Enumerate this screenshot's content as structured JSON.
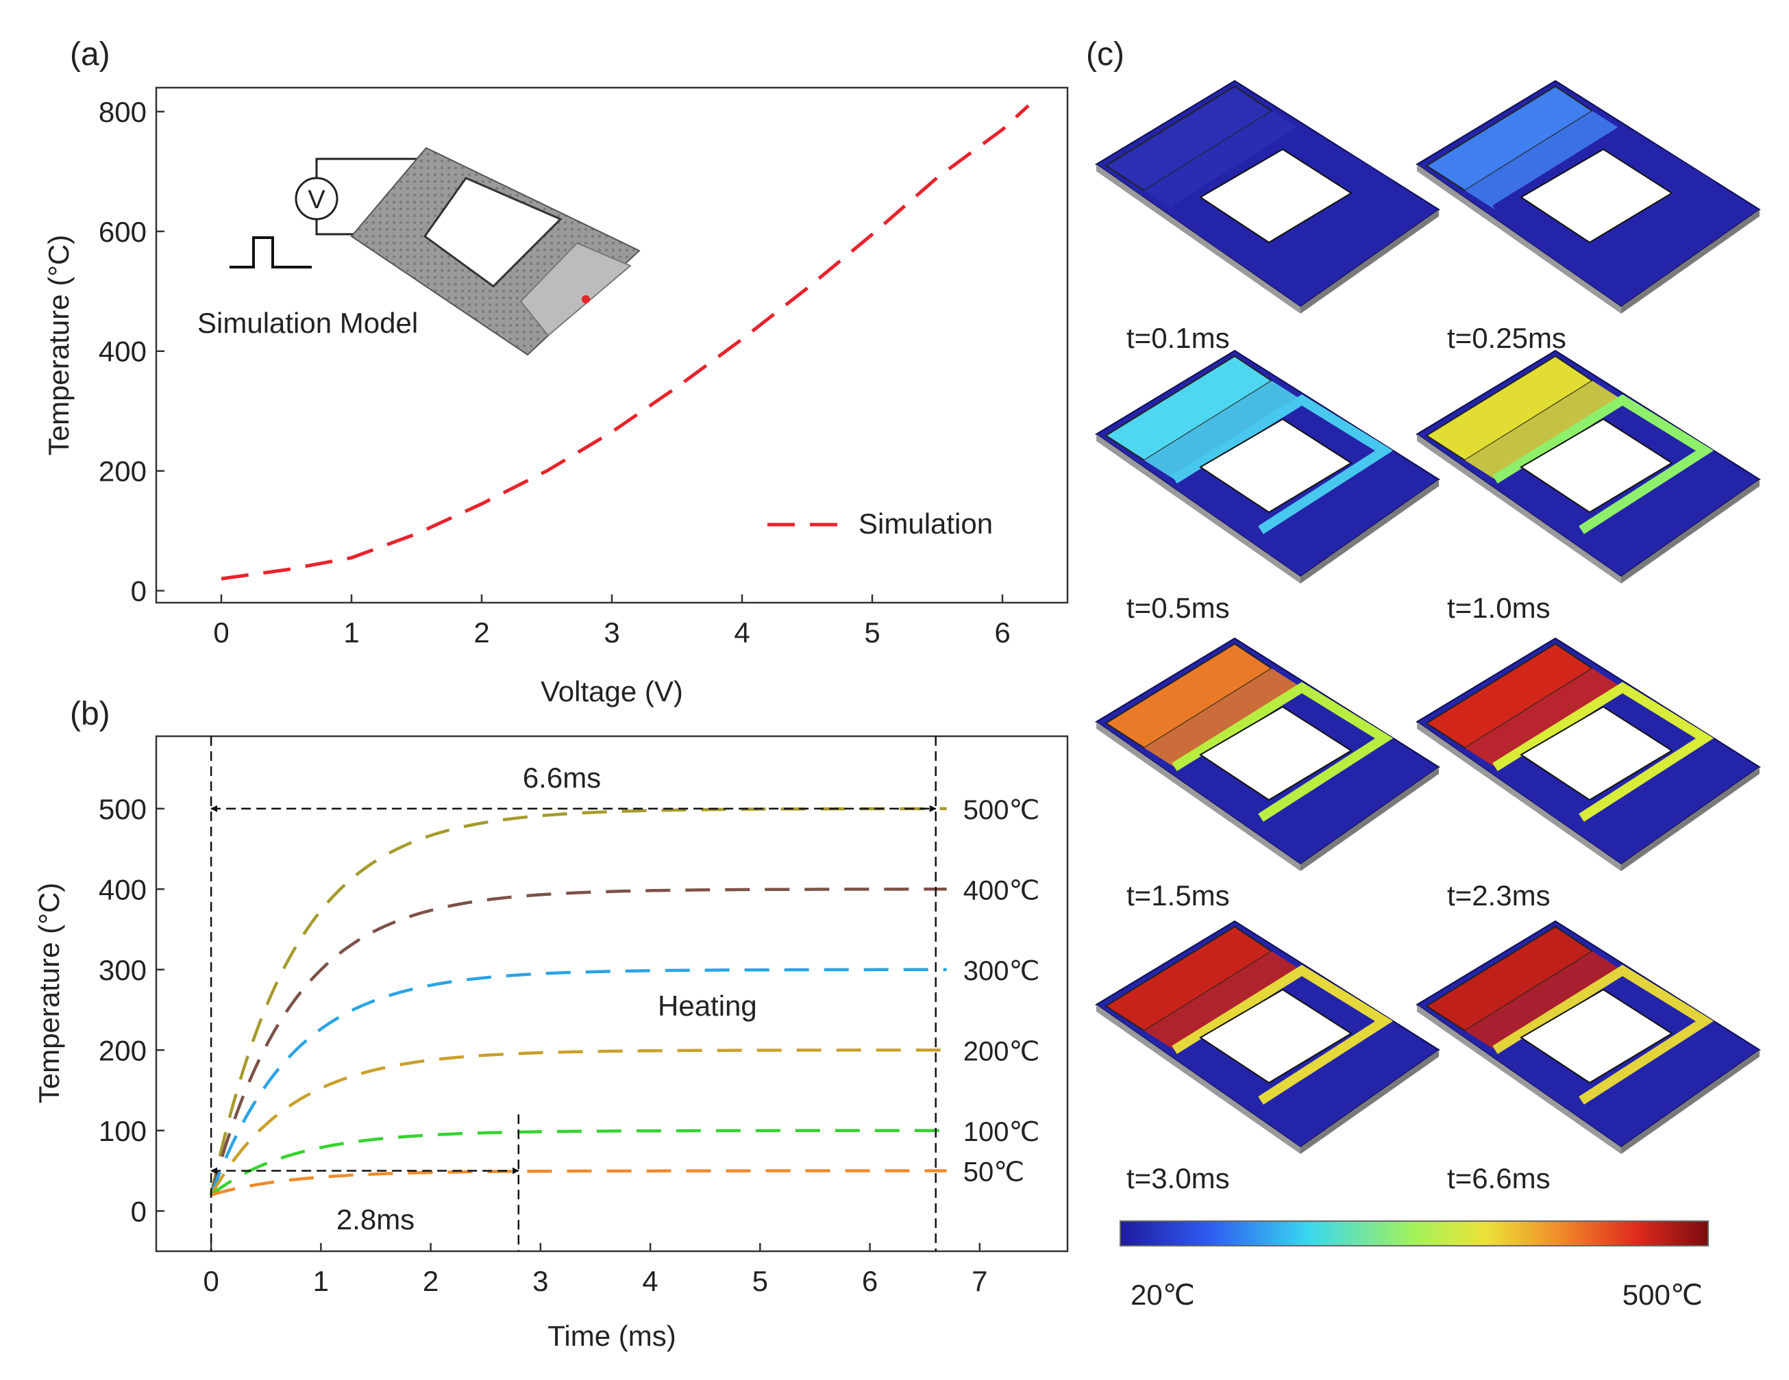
{
  "panel_a": {
    "label": "(a)",
    "inset_label": "Simulation  Model",
    "voltmeter": "V",
    "legend": "Simulation"
  },
  "panel_b": {
    "label": "(b)",
    "span_long": "6.6ms",
    "span_short": "2.8ms",
    "annotation": "Heating",
    "targets": [
      "500℃",
      "400℃",
      "300℃",
      "200℃",
      "100℃",
      "50℃"
    ]
  },
  "panel_c": {
    "label": "(c)",
    "times": [
      "t=0.1ms",
      "t=0.25ms",
      "t=0.5ms",
      "t=1.0ms",
      "t=1.5ms",
      "t=2.3ms",
      "t=3.0ms",
      "t=6.6ms"
    ],
    "colorbar_min": "20℃",
    "colorbar_max": "500℃"
  },
  "chart_data": [
    {
      "id": "a",
      "type": "line",
      "xlabel": "Voltage (V)",
      "ylabel": "Temperature (°C)",
      "xlim": [
        -0.5,
        6.5
      ],
      "ylim": [
        -20,
        840
      ],
      "xticks": [
        0,
        1,
        2,
        3,
        4,
        5,
        6
      ],
      "yticks": [
        0,
        200,
        400,
        600,
        800
      ],
      "series": [
        {
          "name": "Simulation",
          "color": "#e8232b",
          "x": [
            0,
            0.5,
            1,
            1.5,
            2,
            2.5,
            3,
            3.5,
            4,
            4.5,
            5,
            5.5,
            6,
            6.2
          ],
          "y": [
            20,
            35,
            55,
            95,
            145,
            200,
            265,
            340,
            420,
            505,
            595,
            690,
            770,
            810
          ]
        }
      ]
    },
    {
      "id": "b",
      "type": "line",
      "xlabel": "Time (ms)",
      "ylabel": "Temperature  (°C)",
      "xlim": [
        -0.5,
        7.8
      ],
      "ylim": [
        -50,
        590
      ],
      "xticks": [
        0,
        1,
        2,
        3,
        4,
        5,
        6,
        7
      ],
      "yticks": [
        0,
        100,
        200,
        300,
        400,
        500
      ],
      "series": [
        {
          "name": "500℃",
          "target": 500,
          "color": "#a69a2c"
        },
        {
          "name": "400℃",
          "target": 400,
          "color": "#7d5149"
        },
        {
          "name": "300℃",
          "target": 300,
          "color": "#2aa3e5"
        },
        {
          "name": "200℃",
          "target": 200,
          "color": "#c9a02a"
        },
        {
          "name": "100℃",
          "target": 100,
          "color": "#36d22f"
        },
        {
          "name": "50℃",
          "target": 50,
          "color": "#f08a2a"
        }
      ],
      "time_constant_ms": 0.75,
      "t_end_ms": 6.7,
      "markers_ms": [
        0,
        2.8,
        6.6
      ]
    },
    {
      "id": "c-colorbar",
      "type": "heatmap",
      "range": [
        20,
        500
      ],
      "unit": "℃",
      "colormap": [
        "#1f1b9c",
        "#2e5bf0",
        "#3ad7f0",
        "#a4f25a",
        "#ece23a",
        "#f08a2a",
        "#de2a1c",
        "#7a0d0d"
      ]
    }
  ]
}
